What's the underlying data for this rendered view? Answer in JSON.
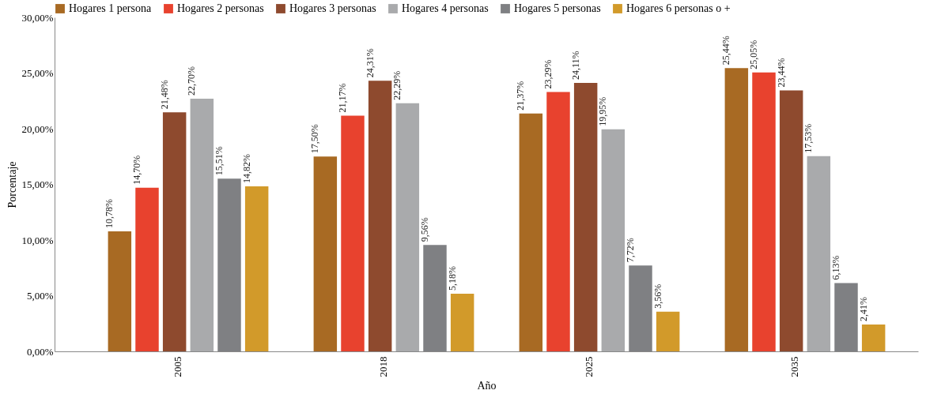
{
  "chart_data": {
    "type": "bar",
    "xlabel": "Año",
    "ylabel": "Porcentaje",
    "categories": [
      "2005",
      "2018",
      "2025",
      "2035"
    ],
    "series": [
      {
        "name": "Hogares 1 persona",
        "color": "#a86a23",
        "values": [
          10.78,
          17.5,
          21.37,
          25.44
        ],
        "value_labels": [
          "10,78%",
          "17,50%",
          "21,37%",
          "25,44%"
        ]
      },
      {
        "name": "Hogares 2 personas",
        "color": "#e8422e",
        "values": [
          14.7,
          21.17,
          23.29,
          25.05
        ],
        "value_labels": [
          "14,70%",
          "21,17%",
          "23,29%",
          "25,05%"
        ]
      },
      {
        "name": "Hogares 3 personas",
        "color": "#8e4a2e",
        "values": [
          21.48,
          24.31,
          24.11,
          23.44
        ],
        "value_labels": [
          "21,48%",
          "24,31%",
          "24,11%",
          "23,44%"
        ]
      },
      {
        "name": "Hogares 4 personas",
        "color": "#a9aaac",
        "values": [
          22.7,
          22.29,
          19.95,
          17.53
        ],
        "value_labels": [
          "22,70%",
          "22,29%",
          "19,95%",
          "17,53%"
        ]
      },
      {
        "name": "Hogares 5 personas",
        "color": "#7f8083",
        "values": [
          15.51,
          9.56,
          7.72,
          6.13
        ],
        "value_labels": [
          "15,51%",
          "9,56%",
          "7,72%",
          "6,13%"
        ]
      },
      {
        "name": "Hogares 6 personas o +",
        "color": "#d29a2a",
        "values": [
          14.82,
          5.18,
          3.56,
          2.41
        ],
        "value_labels": [
          "14,82%",
          "5,18%",
          "3,56%",
          "2,41%"
        ]
      }
    ],
    "ylim": [
      0,
      30
    ],
    "yticks": [
      {
        "value": 0,
        "label": "0,00%"
      },
      {
        "value": 5,
        "label": "5,00%"
      },
      {
        "value": 10,
        "label": "10,00%"
      },
      {
        "value": 15,
        "label": "15,00%"
      },
      {
        "value": 20,
        "label": "20,00%"
      },
      {
        "value": 25,
        "label": "25,00%"
      },
      {
        "value": 30,
        "label": "30,00%"
      }
    ],
    "legend": "top",
    "grid": false
  }
}
